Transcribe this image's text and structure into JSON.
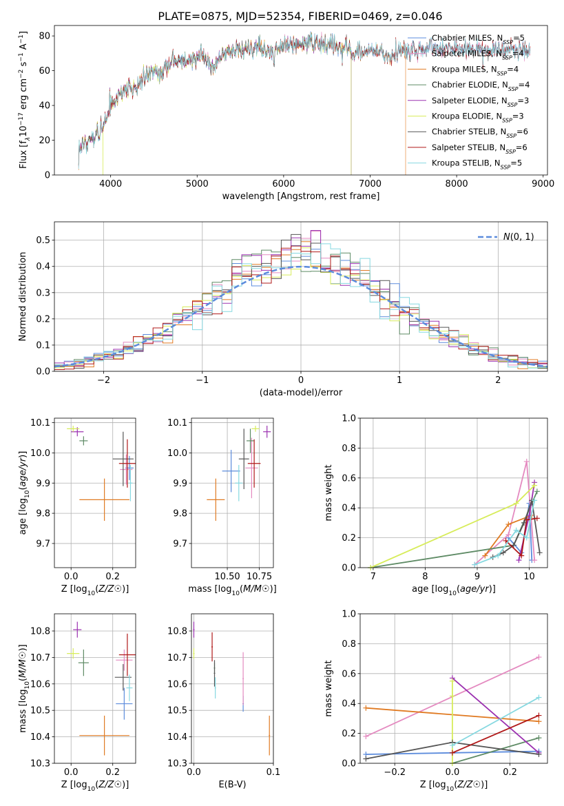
{
  "figure": {
    "title": "PLATE=0875, MJD=52354, FIBERID=0469, z=0.046"
  },
  "colors": {
    "Chabrier MILES": "#5b8bdc",
    "Salpeter MILES": "#e48ac0",
    "Kroupa MILES": "#e07a22",
    "Chabrier ELODIE": "#5d8a64",
    "Salpeter ELODIE": "#9b30b0",
    "Kroupa ELODIE": "#d7ec5a",
    "Chabrier STELIB": "#555555",
    "Salpeter STELIB": "#b01818",
    "Kroupa STELIB": "#85d8e0"
  },
  "chart_data": [
    {
      "id": "spectrum",
      "type": "line",
      "title": "PLATE=0875, MJD=52354, FIBERID=0469, z=0.046",
      "xlabel": "wavelength [Angstrom, rest frame]",
      "ylabel_main": "Flux [f",
      "ylabel_lambda": "λ",
      "ylabel_rest": "10",
      "ylabel_exp1": "−17",
      "ylabel_unit": " erg cm",
      "ylabel_exp2": "−2",
      "ylabel_s": " s",
      "ylabel_exp3": "−1",
      "ylabel_a": " A",
      "ylabel_exp4": "−1",
      "ylabel_close": "]",
      "xlim": [
        3350,
        9050
      ],
      "ylim": [
        0,
        86
      ],
      "xticks": [
        4000,
        5000,
        6000,
        7000,
        8000,
        9000
      ],
      "yticks": [
        0,
        20,
        40,
        60,
        80
      ],
      "grid": false,
      "legend_position": "top-right",
      "continuum_nodes": [
        [
          3630,
          15
        ],
        [
          3700,
          19
        ],
        [
          3800,
          21
        ],
        [
          3900,
          27
        ],
        [
          3960,
          33
        ],
        [
          4000,
          42
        ],
        [
          4100,
          46
        ],
        [
          4200,
          50
        ],
        [
          4300,
          50
        ],
        [
          4400,
          56
        ],
        [
          4500,
          59
        ],
        [
          4600,
          60
        ],
        [
          4700,
          64
        ],
        [
          4800,
          65
        ],
        [
          4900,
          66
        ],
        [
          5000,
          68
        ],
        [
          5100,
          68
        ],
        [
          5175,
          61
        ],
        [
          5300,
          70
        ],
        [
          5500,
          73
        ],
        [
          5700,
          74
        ],
        [
          5890,
          70
        ],
        [
          5900,
          73
        ],
        [
          6100,
          75
        ],
        [
          6300,
          76
        ],
        [
          6500,
          75
        ],
        [
          6563,
          74
        ],
        [
          6700,
          74
        ],
        [
          6870,
          70
        ],
        [
          7000,
          71
        ],
        [
          7200,
          70
        ],
        [
          7400,
          72
        ],
        [
          7600,
          73
        ],
        [
          7800,
          73
        ],
        [
          8000,
          72
        ],
        [
          8200,
          72
        ],
        [
          8400,
          71
        ],
        [
          8600,
          72
        ],
        [
          8800,
          71
        ],
        [
          8850,
          72
        ]
      ],
      "series": [
        {
          "name": "Chabrier MILES",
          "nssp": "5",
          "xmin": 3630,
          "xmax": 8850
        },
        {
          "name": "Salpeter MILES",
          "nssp": "4",
          "xmin": 3630,
          "xmax": 8850
        },
        {
          "name": "Kroupa MILES",
          "nssp": "4",
          "xmin": 3630,
          "xmax": 7410
        },
        {
          "name": "Chabrier ELODIE",
          "nssp": "4",
          "xmin": 3630,
          "xmax": 6780
        },
        {
          "name": "Salpeter ELODIE",
          "nssp": "3",
          "xmin": 3630,
          "xmax": 6780
        },
        {
          "name": "Kroupa ELODIE",
          "nssp": "3",
          "xmin": 3630,
          "xmax": 6780
        },
        {
          "name": "Chabrier STELIB",
          "nssp": "6",
          "xmin": 3630,
          "xmax": 8850
        },
        {
          "name": "Salpeter STELIB",
          "nssp": "6",
          "xmin": 3630,
          "xmax": 8850
        },
        {
          "name": "Kroupa STELIB",
          "nssp": "5",
          "xmin": 3630,
          "xmax": 8850
        }
      ],
      "legend_sub": "SSP"
    },
    {
      "id": "residuals",
      "type": "histogram",
      "xlabel": "(data-model)/error",
      "ylabel": "Normed distribution",
      "xlim": [
        -2.5,
        2.5
      ],
      "ylim": [
        0,
        0.57
      ],
      "xticks": [
        -2,
        -1,
        0,
        1,
        2
      ],
      "xticklabels": [
        "−2",
        "−1",
        "0",
        "1",
        "2"
      ],
      "yticks": [
        0.0,
        0.1,
        0.2,
        0.3,
        0.4,
        0.5
      ],
      "grid": true,
      "legend_position": "top-right",
      "reference_label": "N(0,1)",
      "reference_mean": 0.0,
      "reference_sigma": 1.0,
      "bin_width": 0.1
    },
    {
      "id": "age-vs-Z",
      "type": "errorbar",
      "xlabel": "Z [log10(Z/Z☉)]",
      "ylabel": "age  [log10(age/yr)]",
      "xlim": [
        -0.08,
        0.31
      ],
      "ylim": [
        9.62,
        10.115
      ],
      "xticks": [
        0.0,
        0.2
      ],
      "yticks": [
        9.7,
        9.8,
        9.9,
        10.0,
        10.1
      ],
      "grid": true,
      "points": [
        {
          "name": "Chabrier MILES",
          "x": 0.28,
          "xerr": 0.02,
          "y": 9.95,
          "yerr": 0.04
        },
        {
          "name": "Salpeter MILES",
          "x": 0.265,
          "xerr": 0.03,
          "y": 9.945,
          "yerr": 0.05
        },
        {
          "name": "Kroupa MILES",
          "x": 0.16,
          "xerr": 0.12,
          "y": 9.845,
          "yerr": 0.07
        },
        {
          "name": "Chabrier ELODIE",
          "x": 0.06,
          "xerr": 0.02,
          "y": 10.04,
          "yerr": 0.015
        },
        {
          "name": "Salpeter ELODIE",
          "x": 0.03,
          "xerr": 0.03,
          "y": 10.07,
          "yerr": 0.015
        },
        {
          "name": "Kroupa ELODIE",
          "x": 0.01,
          "xerr": 0.03,
          "y": 10.08,
          "yerr": 0.01
        },
        {
          "name": "Chabrier STELIB",
          "x": 0.25,
          "xerr": 0.05,
          "y": 9.98,
          "yerr": 0.09
        },
        {
          "name": "Salpeter STELIB",
          "x": 0.27,
          "xerr": 0.04,
          "y": 9.965,
          "yerr": 0.08
        },
        {
          "name": "Kroupa STELIB",
          "x": 0.285,
          "xerr": 0.01,
          "y": 9.9,
          "yerr": 0.06
        }
      ]
    },
    {
      "id": "age-vs-mass",
      "type": "errorbar",
      "xlabel": "mass [log10(M/M☉)]",
      "ylabel": "",
      "xlim": [
        10.22,
        10.86
      ],
      "ylim": [
        9.62,
        10.115
      ],
      "xticks": [
        10.5,
        10.75
      ],
      "yticks": [
        9.7,
        9.8,
        9.9,
        10.0,
        10.1
      ],
      "grid": true,
      "points": [
        {
          "name": "Chabrier MILES",
          "x": 10.53,
          "xerr": 0.07,
          "y": 9.94,
          "yerr": 0.07
        },
        {
          "name": "Salpeter MILES",
          "x": 10.69,
          "xerr": 0.05,
          "y": 9.95,
          "yerr": 0.1
        },
        {
          "name": "Kroupa MILES",
          "x": 10.41,
          "xerr": 0.07,
          "y": 9.845,
          "yerr": 0.07
        },
        {
          "name": "Chabrier ELODIE",
          "x": 10.68,
          "xerr": 0.03,
          "y": 10.04,
          "yerr": 0.04
        },
        {
          "name": "Salpeter ELODIE",
          "x": 10.81,
          "xerr": 0.03,
          "y": 10.07,
          "yerr": 0.02
        },
        {
          "name": "Kroupa ELODIE",
          "x": 10.72,
          "xerr": 0.03,
          "y": 10.08,
          "yerr": 0.01
        },
        {
          "name": "Chabrier STELIB",
          "x": 10.63,
          "xerr": 0.04,
          "y": 9.98,
          "yerr": 0.1
        },
        {
          "name": "Salpeter STELIB",
          "x": 10.71,
          "xerr": 0.05,
          "y": 9.965,
          "yerr": 0.08
        },
        {
          "name": "Kroupa STELIB",
          "x": 10.59,
          "xerr": 0.03,
          "y": 9.9,
          "yerr": 0.06
        }
      ]
    },
    {
      "id": "mass-weight-vs-age",
      "type": "line",
      "xlabel": "age  [log10(age/yr)]",
      "ylabel": "mass weight",
      "xlim": [
        6.75,
        10.35
      ],
      "ylim": [
        0,
        1.0
      ],
      "xticks": [
        7,
        8,
        9,
        10
      ],
      "yticks": [
        0.0,
        0.2,
        0.4,
        0.6,
        0.8,
        1.0
      ],
      "grid": true,
      "series": [
        {
          "name": "Chabrier MILES",
          "x": [
            9.6,
            9.85,
            10.0,
            10.05
          ],
          "y": [
            0.2,
            0.1,
            0.43,
            0.05
          ]
        },
        {
          "name": "Salpeter MILES",
          "x": [
            8.95,
            9.6,
            9.95,
            10.1
          ],
          "y": [
            0.02,
            0.22,
            0.71,
            0.05
          ]
        },
        {
          "name": "Kroupa MILES",
          "x": [
            9.15,
            9.6,
            10.05
          ],
          "y": [
            0.08,
            0.29,
            0.35
          ]
        },
        {
          "name": "Chabrier ELODIE",
          "x": [
            6.95,
            9.7,
            10.15
          ],
          "y": [
            0.0,
            0.15,
            0.51
          ]
        },
        {
          "name": "Salpeter ELODIE",
          "x": [
            9.8,
            10.0,
            10.1
          ],
          "y": [
            0.05,
            0.35,
            0.57
          ]
        },
        {
          "name": "Kroupa ELODIE",
          "x": [
            6.95,
            9.75,
            10.1
          ],
          "y": [
            0.0,
            0.43,
            0.55
          ]
        },
        {
          "name": "Chabrier STELIB",
          "x": [
            9.3,
            9.5,
            9.7,
            9.9,
            10.05,
            10.2
          ],
          "y": [
            0.07,
            0.1,
            0.15,
            0.3,
            0.45,
            0.1
          ]
        },
        {
          "name": "Salpeter STELIB",
          "x": [
            9.55,
            9.85,
            9.95,
            10.15
          ],
          "y": [
            0.18,
            0.08,
            0.32,
            0.33
          ]
        },
        {
          "name": "Kroupa STELIB",
          "x": [
            8.95,
            9.4,
            9.75,
            9.95,
            10.1
          ],
          "y": [
            0.02,
            0.08,
            0.25,
            0.2,
            0.45
          ]
        }
      ]
    },
    {
      "id": "mass-vs-Z",
      "type": "errorbar",
      "xlabel": "Z [log10(Z/Z☉)]",
      "ylabel": "mass [log10(M/M☉)]",
      "xlim": [
        -0.08,
        0.31
      ],
      "ylim": [
        10.3,
        10.865
      ],
      "xticks": [
        0.0,
        0.2
      ],
      "yticks": [
        10.3,
        10.4,
        10.5,
        10.6,
        10.7,
        10.8
      ],
      "grid": true,
      "points": [
        {
          "name": "Chabrier MILES",
          "x": 0.255,
          "xerr": 0.04,
          "y": 10.525,
          "yerr": 0.06
        },
        {
          "name": "Salpeter MILES",
          "x": 0.255,
          "xerr": 0.04,
          "y": 10.69,
          "yerr": 0.04
        },
        {
          "name": "Kroupa MILES",
          "x": 0.16,
          "xerr": 0.12,
          "y": 10.405,
          "yerr": 0.075
        },
        {
          "name": "Chabrier ELODIE",
          "x": 0.06,
          "xerr": 0.025,
          "y": 10.68,
          "yerr": 0.05
        },
        {
          "name": "Salpeter ELODIE",
          "x": 0.03,
          "xerr": 0.02,
          "y": 10.805,
          "yerr": 0.03
        },
        {
          "name": "Kroupa ELODIE",
          "x": 0.01,
          "xerr": 0.03,
          "y": 10.715,
          "yerr": 0.02
        },
        {
          "name": "Chabrier STELIB",
          "x": 0.25,
          "xerr": 0.04,
          "y": 10.625,
          "yerr": 0.05
        },
        {
          "name": "Salpeter STELIB",
          "x": 0.27,
          "xerr": 0.04,
          "y": 10.71,
          "yerr": 0.08
        },
        {
          "name": "Kroupa STELIB",
          "x": 0.28,
          "xerr": 0.015,
          "y": 10.585,
          "yerr": 0.05
        }
      ]
    },
    {
      "id": "mass-vs-EBV",
      "type": "errorbar",
      "xlabel": "E(B-V)",
      "ylabel": "",
      "xlim": [
        -0.003,
        0.1
      ],
      "ylim": [
        10.3,
        10.865
      ],
      "xticks": [
        0.0,
        0.1
      ],
      "yticks": [
        10.3,
        10.4,
        10.5,
        10.6,
        10.7,
        10.8
      ],
      "grid": true,
      "points": [
        {
          "name": "Chabrier MILES",
          "x": 0.062,
          "xerr": 0,
          "y": 10.525,
          "yerr": 0.03
        },
        {
          "name": "Salpeter MILES",
          "x": 0.062,
          "xerr": 0,
          "y": 10.62,
          "yerr": 0.1
        },
        {
          "name": "Kroupa MILES",
          "x": 0.095,
          "xerr": 0,
          "y": 10.405,
          "yerr": 0.075
        },
        {
          "name": "Chabrier ELODIE",
          "x": 0.026,
          "xerr": 0,
          "y": 10.66,
          "yerr": 0.02
        },
        {
          "name": "Salpeter ELODIE",
          "x": 0.0,
          "xerr": 0,
          "y": 10.805,
          "yerr": 0.03
        },
        {
          "name": "Kroupa ELODIE",
          "x": 0.0,
          "xerr": 0,
          "y": 10.715,
          "yerr": 0.02
        },
        {
          "name": "Chabrier STELIB",
          "x": 0.026,
          "xerr": 0,
          "y": 10.64,
          "yerr": 0.05
        },
        {
          "name": "Salpeter STELIB",
          "x": 0.023,
          "xerr": 0,
          "y": 10.74,
          "yerr": 0.055
        },
        {
          "name": "Kroupa STELIB",
          "x": 0.027,
          "xerr": 0,
          "y": 10.585,
          "yerr": 0.04
        }
      ]
    },
    {
      "id": "mass-weight-vs-Z",
      "type": "line",
      "xlabel": "Z [log10(Z/Z☉)]",
      "ylabel": "mass weight",
      "xlim": [
        -0.32,
        0.33
      ],
      "ylim": [
        0,
        1.0
      ],
      "xticks": [
        -0.2,
        0.0,
        0.2
      ],
      "xticklabels": [
        "−0.2",
        "0.0",
        "0.2"
      ],
      "yticks": [
        0.0,
        0.2,
        0.4,
        0.6,
        0.8,
        1.0
      ],
      "grid": true,
      "series": [
        {
          "name": "Chabrier MILES",
          "x": [
            -0.3,
            0.0,
            0.3
          ],
          "y": [
            0.06,
            0.07,
            0.08
          ]
        },
        {
          "name": "Salpeter MILES",
          "x": [
            -0.3,
            0.3
          ],
          "y": [
            0.18,
            0.71
          ]
        },
        {
          "name": "Kroupa MILES",
          "x": [
            -0.3,
            0.3
          ],
          "y": [
            0.37,
            0.28
          ]
        },
        {
          "name": "Chabrier ELODIE",
          "x": [
            0.0,
            0.3
          ],
          "y": [
            0.0,
            0.17
          ]
        },
        {
          "name": "Salpeter ELODIE",
          "x": [
            0.0,
            0.3
          ],
          "y": [
            0.57,
            0.07
          ]
        },
        {
          "name": "Kroupa ELODIE",
          "x": [
            0.0,
            0.0,
            0.0
          ],
          "y": [
            0.0,
            0.45,
            0.55
          ]
        },
        {
          "name": "Chabrier STELIB",
          "x": [
            -0.3,
            0.0,
            0.3
          ],
          "y": [
            0.03,
            0.14,
            0.06
          ]
        },
        {
          "name": "Salpeter STELIB",
          "x": [
            0.0,
            0.3
          ],
          "y": [
            0.07,
            0.32
          ]
        },
        {
          "name": "Kroupa STELIB",
          "x": [
            0.0,
            0.3
          ],
          "y": [
            0.12,
            0.44
          ]
        }
      ]
    }
  ]
}
